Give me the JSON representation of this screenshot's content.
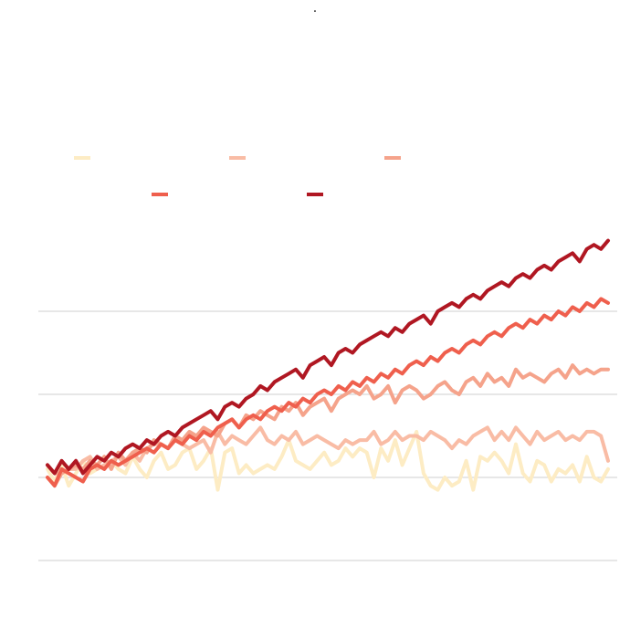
{
  "chart_data": {
    "type": "line",
    "title": ".",
    "xlim": [
      0,
      79
    ],
    "ylim": [
      -1,
      3
    ],
    "y_gridlines": [
      -1,
      0,
      1,
      2
    ],
    "grid": true,
    "legend_placement": "top-left",
    "x": [
      0,
      1,
      2,
      3,
      4,
      5,
      6,
      7,
      8,
      9,
      10,
      11,
      12,
      13,
      14,
      15,
      16,
      17,
      18,
      19,
      20,
      21,
      22,
      23,
      24,
      25,
      26,
      27,
      28,
      29,
      30,
      31,
      32,
      33,
      34,
      35,
      36,
      37,
      38,
      39,
      40,
      41,
      42,
      43,
      44,
      45,
      46,
      47,
      48,
      49,
      50,
      51,
      52,
      53,
      54,
      55,
      56,
      57,
      58,
      59,
      60,
      61,
      62,
      63,
      64,
      65,
      66,
      67,
      68,
      69,
      70,
      71,
      72,
      73,
      74,
      75,
      76,
      77,
      78,
      79
    ],
    "series": [
      {
        "color": "#fdecc4",
        "values": [
          0.1,
          -0.05,
          0.15,
          -0.1,
          0.05,
          0.2,
          0.05,
          0.1,
          0.15,
          0.2,
          0.1,
          0.05,
          0.25,
          0.1,
          0.0,
          0.2,
          0.3,
          0.1,
          0.15,
          0.3,
          0.35,
          0.1,
          0.2,
          0.35,
          -0.15,
          0.3,
          0.35,
          0.05,
          0.15,
          0.05,
          0.1,
          0.15,
          0.1,
          0.25,
          0.45,
          0.2,
          0.15,
          0.1,
          0.2,
          0.3,
          0.15,
          0.2,
          0.35,
          0.25,
          0.35,
          0.3,
          0.0,
          0.35,
          0.2,
          0.45,
          0.15,
          0.35,
          0.55,
          0.05,
          -0.1,
          -0.15,
          0.0,
          -0.1,
          -0.05,
          0.2,
          -0.15,
          0.25,
          0.2,
          0.3,
          0.2,
          0.05,
          0.4,
          0.05,
          -0.05,
          0.2,
          0.15,
          -0.05,
          0.1,
          0.05,
          0.15,
          -0.05,
          0.25,
          0.0,
          -0.05,
          0.1
        ]
      },
      {
        "color": "#f9bca5",
        "values": [
          0.15,
          0.05,
          0.05,
          0.1,
          0.1,
          0.2,
          0.25,
          0.1,
          0.15,
          0.2,
          0.25,
          0.15,
          0.3,
          0.2,
          0.35,
          0.4,
          0.4,
          0.35,
          0.45,
          0.4,
          0.35,
          0.4,
          0.45,
          0.3,
          0.55,
          0.4,
          0.5,
          0.45,
          0.4,
          0.5,
          0.6,
          0.45,
          0.4,
          0.5,
          0.45,
          0.55,
          0.4,
          0.45,
          0.5,
          0.45,
          0.4,
          0.35,
          0.45,
          0.4,
          0.45,
          0.45,
          0.55,
          0.4,
          0.45,
          0.55,
          0.45,
          0.5,
          0.5,
          0.45,
          0.55,
          0.5,
          0.45,
          0.35,
          0.45,
          0.4,
          0.5,
          0.55,
          0.6,
          0.45,
          0.55,
          0.45,
          0.6,
          0.5,
          0.4,
          0.55,
          0.45,
          0.5,
          0.55,
          0.45,
          0.5,
          0.45,
          0.55,
          0.55,
          0.5,
          0.2
        ]
      },
      {
        "color": "#f5a38b",
        "values": [
          0.0,
          -0.1,
          0.05,
          0.1,
          0.15,
          0.1,
          0.2,
          0.15,
          0.25,
          0.1,
          0.3,
          0.2,
          0.3,
          0.35,
          0.3,
          0.45,
          0.4,
          0.35,
          0.5,
          0.45,
          0.55,
          0.5,
          0.6,
          0.55,
          0.5,
          0.65,
          0.7,
          0.6,
          0.75,
          0.7,
          0.8,
          0.75,
          0.7,
          0.85,
          0.8,
          0.9,
          0.75,
          0.85,
          0.9,
          0.95,
          0.8,
          0.95,
          1.0,
          1.05,
          1.0,
          1.1,
          0.95,
          1.0,
          1.1,
          0.9,
          1.05,
          1.1,
          1.05,
          0.95,
          1.0,
          1.1,
          1.15,
          1.05,
          1.0,
          1.15,
          1.2,
          1.1,
          1.25,
          1.15,
          1.2,
          1.1,
          1.3,
          1.2,
          1.25,
          1.2,
          1.15,
          1.25,
          1.3,
          1.2,
          1.35,
          1.25,
          1.3,
          1.25,
          1.3,
          1.3
        ]
      },
      {
        "color": "#ef5f4d",
        "values": [
          0.0,
          -0.1,
          0.1,
          0.05,
          0.0,
          -0.05,
          0.1,
          0.15,
          0.1,
          0.2,
          0.15,
          0.2,
          0.25,
          0.3,
          0.35,
          0.3,
          0.4,
          0.35,
          0.45,
          0.4,
          0.5,
          0.45,
          0.55,
          0.5,
          0.6,
          0.65,
          0.7,
          0.6,
          0.7,
          0.75,
          0.7,
          0.8,
          0.85,
          0.8,
          0.9,
          0.85,
          0.95,
          0.9,
          1.0,
          1.05,
          1.0,
          1.1,
          1.05,
          1.15,
          1.1,
          1.2,
          1.15,
          1.25,
          1.2,
          1.3,
          1.25,
          1.35,
          1.4,
          1.35,
          1.45,
          1.4,
          1.5,
          1.55,
          1.5,
          1.6,
          1.65,
          1.6,
          1.7,
          1.75,
          1.7,
          1.8,
          1.85,
          1.8,
          1.9,
          1.85,
          1.95,
          1.9,
          2.0,
          1.95,
          2.05,
          2.0,
          2.1,
          2.05,
          2.15,
          2.1
        ]
      },
      {
        "color": "#b01722",
        "values": [
          0.15,
          0.05,
          0.2,
          0.1,
          0.2,
          0.05,
          0.15,
          0.25,
          0.2,
          0.3,
          0.25,
          0.35,
          0.4,
          0.35,
          0.45,
          0.4,
          0.5,
          0.55,
          0.5,
          0.6,
          0.65,
          0.7,
          0.75,
          0.8,
          0.7,
          0.85,
          0.9,
          0.85,
          0.95,
          1.0,
          1.1,
          1.05,
          1.15,
          1.2,
          1.25,
          1.3,
          1.2,
          1.35,
          1.4,
          1.45,
          1.35,
          1.5,
          1.55,
          1.5,
          1.6,
          1.65,
          1.7,
          1.75,
          1.7,
          1.8,
          1.75,
          1.85,
          1.9,
          1.95,
          1.85,
          2.0,
          2.05,
          2.1,
          2.05,
          2.15,
          2.2,
          2.15,
          2.25,
          2.3,
          2.35,
          2.3,
          2.4,
          2.45,
          2.4,
          2.5,
          2.55,
          2.5,
          2.6,
          2.65,
          2.7,
          2.6,
          2.75,
          2.8,
          2.75,
          2.85
        ]
      }
    ]
  }
}
